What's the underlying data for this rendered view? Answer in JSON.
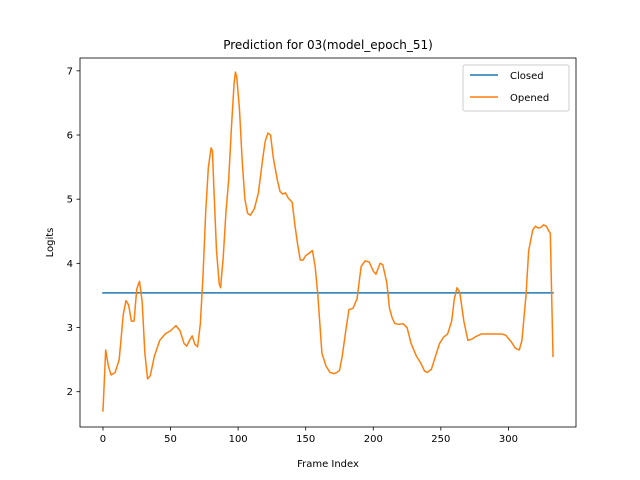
{
  "chart_data": {
    "type": "line",
    "title": "Prediction for 03(model_epoch_51)",
    "xlabel": "Frame Index",
    "ylabel": "Logits",
    "xlim": [
      -17,
      350
    ],
    "ylim": [
      1.45,
      7.2
    ],
    "xticks": [
      0,
      50,
      100,
      150,
      200,
      250,
      300
    ],
    "yticks": [
      2,
      3,
      4,
      5,
      6,
      7
    ],
    "grid": false,
    "legend_position": "top-right",
    "series": [
      {
        "name": "Closed",
        "color": "#1f77b4",
        "points": [
          [
            0,
            3.54
          ],
          [
            333,
            3.54
          ]
        ]
      },
      {
        "name": "Opened",
        "color": "#ff7f0e",
        "points": [
          [
            0,
            1.7
          ],
          [
            2,
            2.65
          ],
          [
            4,
            2.4
          ],
          [
            6,
            2.26
          ],
          [
            9,
            2.3
          ],
          [
            12,
            2.5
          ],
          [
            15,
            3.2
          ],
          [
            17,
            3.42
          ],
          [
            19,
            3.35
          ],
          [
            21,
            3.1
          ],
          [
            23,
            3.1
          ],
          [
            25,
            3.6
          ],
          [
            27,
            3.72
          ],
          [
            29,
            3.4
          ],
          [
            31,
            2.6
          ],
          [
            33,
            2.2
          ],
          [
            35,
            2.25
          ],
          [
            38,
            2.55
          ],
          [
            42,
            2.8
          ],
          [
            46,
            2.9
          ],
          [
            50,
            2.95
          ],
          [
            54,
            3.03
          ],
          [
            57,
            2.95
          ],
          [
            60,
            2.75
          ],
          [
            62,
            2.71
          ],
          [
            64,
            2.8
          ],
          [
            66,
            2.87
          ],
          [
            68,
            2.74
          ],
          [
            70,
            2.7
          ],
          [
            72,
            3.05
          ],
          [
            74,
            3.8
          ],
          [
            76,
            4.8
          ],
          [
            78,
            5.5
          ],
          [
            80,
            5.8
          ],
          [
            81,
            5.75
          ],
          [
            82,
            5.2
          ],
          [
            84,
            4.2
          ],
          [
            86,
            3.68
          ],
          [
            87,
            3.62
          ],
          [
            89,
            4.1
          ],
          [
            91,
            4.8
          ],
          [
            93,
            5.3
          ],
          [
            95,
            6.1
          ],
          [
            97,
            6.8
          ],
          [
            98,
            6.98
          ],
          [
            99,
            6.9
          ],
          [
            101,
            6.4
          ],
          [
            103,
            5.6
          ],
          [
            105,
            5.0
          ],
          [
            107,
            4.78
          ],
          [
            109,
            4.75
          ],
          [
            112,
            4.85
          ],
          [
            115,
            5.1
          ],
          [
            118,
            5.6
          ],
          [
            120,
            5.9
          ],
          [
            122,
            6.03
          ],
          [
            124,
            6.0
          ],
          [
            126,
            5.65
          ],
          [
            129,
            5.3
          ],
          [
            131,
            5.12
          ],
          [
            133,
            5.08
          ],
          [
            135,
            5.1
          ],
          [
            137,
            5.02
          ],
          [
            140,
            4.95
          ],
          [
            142,
            4.6
          ],
          [
            144,
            4.3
          ],
          [
            146,
            4.05
          ],
          [
            148,
            4.05
          ],
          [
            150,
            4.12
          ],
          [
            152,
            4.15
          ],
          [
            155,
            4.2
          ],
          [
            157,
            3.95
          ],
          [
            159,
            3.5
          ],
          [
            162,
            2.6
          ],
          [
            165,
            2.4
          ],
          [
            168,
            2.3
          ],
          [
            171,
            2.28
          ],
          [
            173,
            2.3
          ],
          [
            175,
            2.33
          ],
          [
            177,
            2.55
          ],
          [
            180,
            3.0
          ],
          [
            182,
            3.28
          ],
          [
            185,
            3.3
          ],
          [
            188,
            3.45
          ],
          [
            191,
            3.95
          ],
          [
            194,
            4.04
          ],
          [
            197,
            4.02
          ],
          [
            200,
            3.88
          ],
          [
            202,
            3.83
          ],
          [
            205,
            4.0
          ],
          [
            207,
            3.98
          ],
          [
            210,
            3.7
          ],
          [
            212,
            3.3
          ],
          [
            214,
            3.15
          ],
          [
            216,
            3.06
          ],
          [
            219,
            3.05
          ],
          [
            222,
            3.06
          ],
          [
            225,
            3.0
          ],
          [
            228,
            2.75
          ],
          [
            232,
            2.55
          ],
          [
            235,
            2.45
          ],
          [
            238,
            2.32
          ],
          [
            240,
            2.3
          ],
          [
            243,
            2.35
          ],
          [
            246,
            2.55
          ],
          [
            249,
            2.75
          ],
          [
            252,
            2.85
          ],
          [
            255,
            2.9
          ],
          [
            258,
            3.1
          ],
          [
            260,
            3.45
          ],
          [
            262,
            3.62
          ],
          [
            264,
            3.55
          ],
          [
            267,
            3.1
          ],
          [
            270,
            2.8
          ],
          [
            273,
            2.82
          ],
          [
            276,
            2.86
          ],
          [
            280,
            2.9
          ],
          [
            285,
            2.9
          ],
          [
            290,
            2.9
          ],
          [
            295,
            2.9
          ],
          [
            298,
            2.88
          ],
          [
            302,
            2.78
          ],
          [
            305,
            2.68
          ],
          [
            308,
            2.65
          ],
          [
            310,
            2.8
          ],
          [
            313,
            3.5
          ],
          [
            315,
            4.2
          ],
          [
            318,
            4.52
          ],
          [
            320,
            4.58
          ],
          [
            322,
            4.55
          ],
          [
            324,
            4.56
          ],
          [
            326,
            4.6
          ],
          [
            328,
            4.58
          ],
          [
            330,
            4.5
          ],
          [
            331,
            4.47
          ],
          [
            332,
            3.5
          ],
          [
            333,
            2.55
          ]
        ]
      }
    ]
  }
}
